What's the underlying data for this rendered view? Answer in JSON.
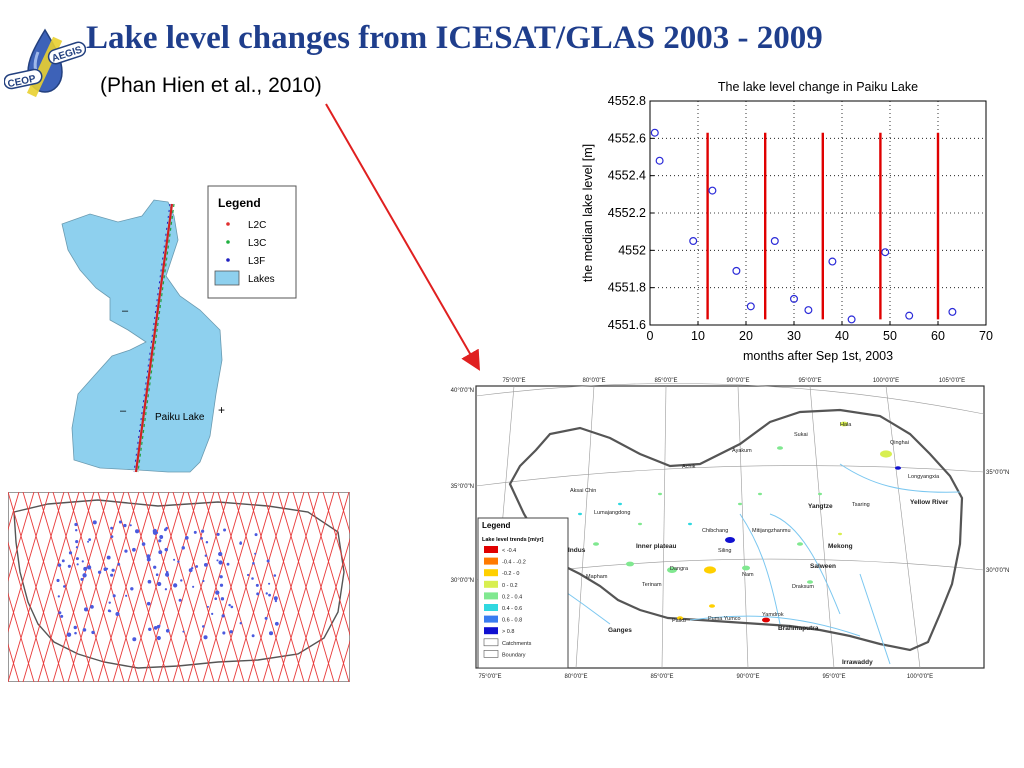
{
  "title": "Lake level changes from ICESAT/GLAS 2003 - 2009",
  "citation": "(Phan Hien et al., 2010)",
  "logo": {
    "text_left": "CEOP",
    "text_right": "AEGIS",
    "icon": "water-drop-icon"
  },
  "colors": {
    "title": "#1f3e8c",
    "lake_fill": "#8ed0ee",
    "markers": "#2a2ad8",
    "year_lines": "#e00000",
    "arrow": "#e02020",
    "tracks": "#e83a3a"
  },
  "chart_data": {
    "type": "scatter",
    "title": "The lake level change in Paiku Lake",
    "xlabel": "months after Sep 1st, 2003",
    "ylabel": "the median lake level [m]",
    "xlim": [
      0,
      70
    ],
    "ylim": [
      4551.6,
      4552.8
    ],
    "xticks": [
      "0",
      "10",
      "20",
      "30",
      "40",
      "50",
      "60",
      "70"
    ],
    "yticks": [
      "4551.6",
      "4551.8",
      "4552",
      "4552.2",
      "4552.4",
      "4552.6",
      "4552.8"
    ],
    "grid": true,
    "vertical_lines_x": [
      12,
      24,
      36,
      48,
      60
    ],
    "points": [
      {
        "x": 1,
        "y": 4552.63
      },
      {
        "x": 2,
        "y": 4552.48
      },
      {
        "x": 9,
        "y": 4552.05
      },
      {
        "x": 13,
        "y": 4552.32
      },
      {
        "x": 18,
        "y": 4551.89
      },
      {
        "x": 21,
        "y": 4551.7
      },
      {
        "x": 26,
        "y": 4552.05
      },
      {
        "x": 30,
        "y": 4551.74
      },
      {
        "x": 33,
        "y": 4551.68
      },
      {
        "x": 38,
        "y": 4551.94
      },
      {
        "x": 42,
        "y": 4551.63
      },
      {
        "x": 49,
        "y": 4551.99
      },
      {
        "x": 54,
        "y": 4551.65
      },
      {
        "x": 63,
        "y": 4551.67
      }
    ]
  },
  "lake_map": {
    "legend_title": "Legend",
    "legend_items": [
      {
        "label": "L2C",
        "color": "#e03030"
      },
      {
        "label": "L3C",
        "color": "#20b040"
      },
      {
        "label": "L3F",
        "color": "#2020c0"
      },
      {
        "label": "Lakes",
        "color": "#8ed0ee"
      }
    ],
    "lake_label": "Paiku Lake"
  },
  "tibet_map": {
    "legend_title": "Legend",
    "legend_subtitle": "Lake level trends [m/yr]",
    "legend_items": [
      {
        "label": "< -0.4",
        "color": "#e00000"
      },
      {
        "label": "-0.4 - -0.2",
        "color": "#ff7a00"
      },
      {
        "label": "-0.2 - 0",
        "color": "#ffd000"
      },
      {
        "label": "0 - 0.2",
        "color": "#d8ef50"
      },
      {
        "label": "0.2 - 0.4",
        "color": "#80e890"
      },
      {
        "label": "0.4 - 0.6",
        "color": "#30d8e0"
      },
      {
        "label": "0.6 - 0.8",
        "color": "#3a7cf0"
      },
      {
        "label": "> 0.8",
        "color": "#1010d0"
      },
      {
        "label": "Catchments",
        "color": "#ffffff"
      },
      {
        "label": "Boundary",
        "color": "#ffffff"
      }
    ],
    "top_lon_labels": [
      "75°0'0\"E",
      "80°0'0\"E",
      "85°0'0\"E",
      "90°0'0\"E",
      "95°0'0\"E",
      "100°0'0\"E",
      "105°0'0\"E"
    ],
    "bottom_lon_labels": [
      "75°0'0\"E",
      "80°0'0\"E",
      "85°0'0\"E",
      "90°0'0\"E",
      "95°0'0\"E",
      "100°0'0\"E"
    ],
    "left_lat_labels": [
      "40°0'0\"N",
      "35°0'0\"N",
      "30°0'0\"N"
    ],
    "right_lat_labels": [
      "35°0'0\"N",
      "30°0'0\"N"
    ],
    "place_labels": [
      "Hala",
      "Sukai",
      "Qinghai",
      "Ayakum",
      "Achik",
      "Longyangxia",
      "Aksai Chin",
      "Yangtze",
      "Tsaring",
      "Yellow River",
      "Lumajangdong",
      "Chibchang",
      "Mitijangzhanmu",
      "Mekong",
      "Inner plateau",
      "Indus",
      "Siling",
      "Salween",
      "Dangra",
      "Nam",
      "Mapham",
      "Terinam",
      "Draksum",
      "Yamdrok",
      "Puma Yumco",
      "Paiku",
      "Ganges",
      "Brahmaputra",
      "Irrawaddy"
    ]
  }
}
